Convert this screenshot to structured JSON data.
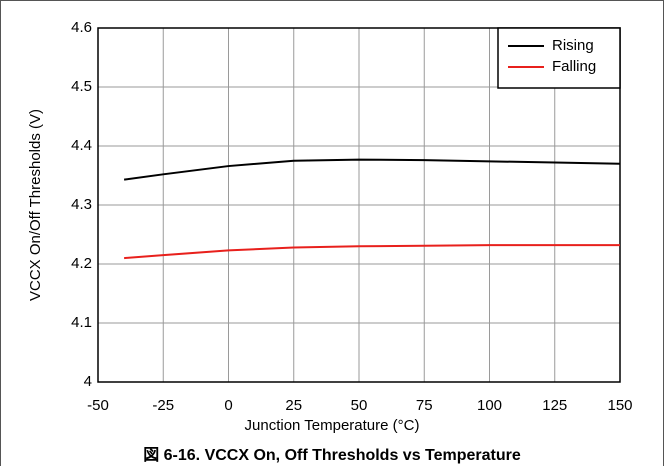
{
  "chart_data": {
    "type": "line",
    "caption": "図 6-16. VCCX On, Off Thresholds vs Temperature",
    "xlabel": "Junction Temperature (°C)",
    "ylabel": "VCCX On/Off Thresholds (V)",
    "x": [
      -40,
      -25,
      0,
      25,
      50,
      75,
      100,
      125,
      150
    ],
    "series": [
      {
        "name": "Rising",
        "color": "#000000",
        "values": [
          4.343,
          4.352,
          4.366,
          4.375,
          4.377,
          4.376,
          4.374,
          4.372,
          4.37
        ]
      },
      {
        "name": "Falling",
        "color": "#e8201c",
        "values": [
          4.21,
          4.215,
          4.223,
          4.228,
          4.23,
          4.231,
          4.232,
          4.232,
          4.232
        ]
      }
    ],
    "xlim": [
      -50,
      150
    ],
    "xticks": [
      -50,
      -25,
      0,
      25,
      50,
      75,
      100,
      125,
      150
    ],
    "ylim": [
      4,
      4.6
    ],
    "yticks": [
      4,
      4.1,
      4.2,
      4.3,
      4.4,
      4.5,
      4.6
    ],
    "grid": true,
    "legend": "upper right"
  }
}
